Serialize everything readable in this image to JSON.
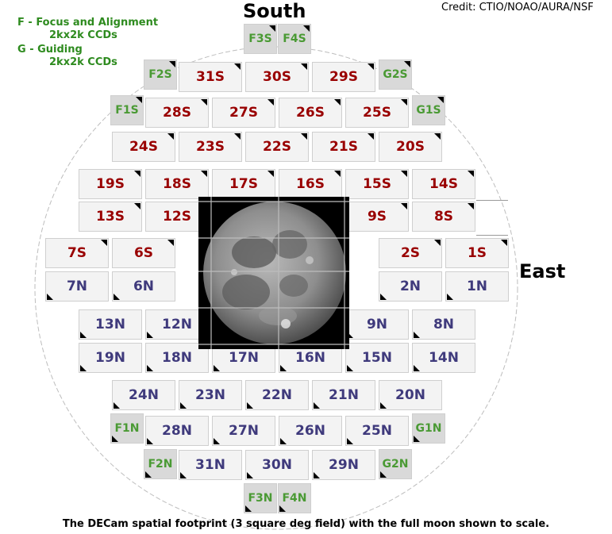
{
  "labels": {
    "south": "South",
    "east": "East",
    "credit": "Credit: CTIO/NOAO/AURA/NSF",
    "legend_f_title": "F - Focus and Alignment",
    "legend_f_sub": "2kx2k CCDs",
    "legend_g_title": "G - Guiding",
    "legend_g_sub": "2kx2k CCDs",
    "caption": "The DECam spatial footprint (3 square deg field) with the full moon shown to scale."
  },
  "ccds": [
    {
      "id": "F3S",
      "kind": "focus"
    },
    {
      "id": "F4S",
      "kind": "focus"
    },
    {
      "id": "F2S",
      "kind": "focus"
    },
    {
      "id": "31S",
      "kind": "s"
    },
    {
      "id": "30S",
      "kind": "s"
    },
    {
      "id": "29S",
      "kind": "s"
    },
    {
      "id": "G2S",
      "kind": "guide"
    },
    {
      "id": "F1S",
      "kind": "focus"
    },
    {
      "id": "28S",
      "kind": "s"
    },
    {
      "id": "27S",
      "kind": "s"
    },
    {
      "id": "26S",
      "kind": "s"
    },
    {
      "id": "25S",
      "kind": "s"
    },
    {
      "id": "G1S",
      "kind": "guide"
    },
    {
      "id": "24S",
      "kind": "s"
    },
    {
      "id": "23S",
      "kind": "s"
    },
    {
      "id": "22S",
      "kind": "s"
    },
    {
      "id": "21S",
      "kind": "s"
    },
    {
      "id": "20S",
      "kind": "s"
    },
    {
      "id": "19S",
      "kind": "s"
    },
    {
      "id": "18S",
      "kind": "s"
    },
    {
      "id": "17S",
      "kind": "s"
    },
    {
      "id": "16S",
      "kind": "s"
    },
    {
      "id": "15S",
      "kind": "s"
    },
    {
      "id": "14S",
      "kind": "s"
    },
    {
      "id": "13S",
      "kind": "s"
    },
    {
      "id": "12S",
      "kind": "s"
    },
    {
      "id": "9S",
      "kind": "s"
    },
    {
      "id": "8S",
      "kind": "s"
    },
    {
      "id": "7S",
      "kind": "s"
    },
    {
      "id": "6S",
      "kind": "s"
    },
    {
      "id": "2S",
      "kind": "s"
    },
    {
      "id": "1S",
      "kind": "s"
    },
    {
      "id": "7N",
      "kind": "n"
    },
    {
      "id": "6N",
      "kind": "n"
    },
    {
      "id": "2N",
      "kind": "n"
    },
    {
      "id": "1N",
      "kind": "n"
    },
    {
      "id": "13N",
      "kind": "n"
    },
    {
      "id": "12N",
      "kind": "n"
    },
    {
      "id": "9N",
      "kind": "n"
    },
    {
      "id": "8N",
      "kind": "n"
    },
    {
      "id": "19N",
      "kind": "n"
    },
    {
      "id": "18N",
      "kind": "n"
    },
    {
      "id": "17N",
      "kind": "n"
    },
    {
      "id": "16N",
      "kind": "n"
    },
    {
      "id": "15N",
      "kind": "n"
    },
    {
      "id": "14N",
      "kind": "n"
    },
    {
      "id": "24N",
      "kind": "n"
    },
    {
      "id": "23N",
      "kind": "n"
    },
    {
      "id": "22N",
      "kind": "n"
    },
    {
      "id": "21N",
      "kind": "n"
    },
    {
      "id": "20N",
      "kind": "n"
    },
    {
      "id": "F1N",
      "kind": "focus"
    },
    {
      "id": "28N",
      "kind": "n"
    },
    {
      "id": "27N",
      "kind": "n"
    },
    {
      "id": "26N",
      "kind": "n"
    },
    {
      "id": "25N",
      "kind": "n"
    },
    {
      "id": "G1N",
      "kind": "guide"
    },
    {
      "id": "F2N",
      "kind": "focus"
    },
    {
      "id": "31N",
      "kind": "n"
    },
    {
      "id": "30N",
      "kind": "n"
    },
    {
      "id": "29N",
      "kind": "n"
    },
    {
      "id": "G2N",
      "kind": "guide"
    },
    {
      "id": "F3N",
      "kind": "focus"
    },
    {
      "id": "F4N",
      "kind": "focus"
    }
  ],
  "colors": {
    "south_label": "#990000",
    "north_label": "#3f3a7c",
    "focus_guide_label": "#4a9a34",
    "legend_text": "#2e8b1f"
  }
}
